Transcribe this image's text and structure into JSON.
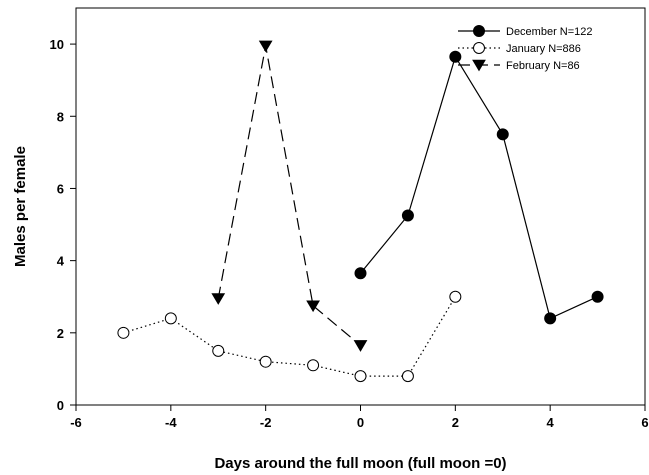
{
  "chart_data": {
    "type": "line",
    "xlabel": "Days around the full moon (full moon =0)",
    "ylabel": "Males per female",
    "xlim": [
      -6,
      6
    ],
    "ylim": [
      0,
      11
    ],
    "x_ticks": [
      -6,
      -4,
      -2,
      0,
      2,
      4,
      6
    ],
    "y_ticks": [
      0,
      2,
      4,
      6,
      8,
      10
    ],
    "grid": false,
    "legend_position": "top-right",
    "series": [
      {
        "name": "December  N=122",
        "marker": "filled-circle",
        "line_style": "solid",
        "color": "#000000",
        "x": [
          0,
          1,
          2,
          3,
          4,
          5
        ],
        "y": [
          3.65,
          5.25,
          9.65,
          7.5,
          2.4,
          3.0
        ]
      },
      {
        "name": "January  N=886",
        "marker": "open-circle",
        "line_style": "dotted",
        "color": "#000000",
        "x": [
          -5,
          -4,
          -3,
          -2,
          -1,
          0,
          1,
          2
        ],
        "y": [
          2.0,
          2.4,
          1.5,
          1.2,
          1.1,
          0.8,
          0.8,
          3.0
        ]
      },
      {
        "name": "February  N=86",
        "marker": "filled-triangle-down",
        "line_style": "dashed",
        "color": "#000000",
        "x": [
          -3,
          -2,
          -1,
          0
        ],
        "y": [
          2.95,
          9.95,
          2.75,
          1.65
        ]
      }
    ]
  }
}
